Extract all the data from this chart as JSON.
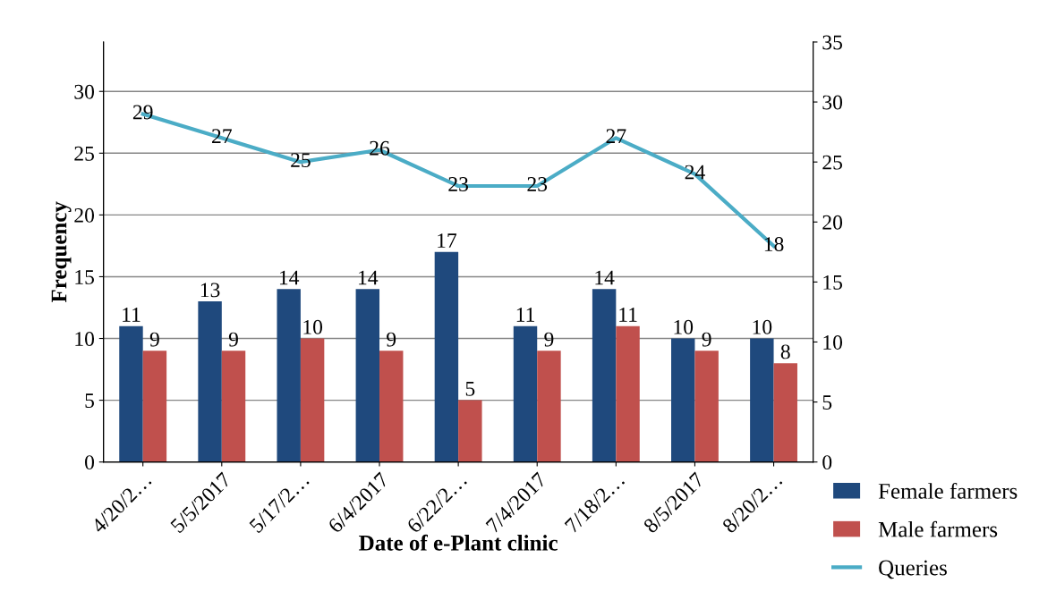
{
  "chart_data": {
    "type": "bar",
    "xlabel": "Date of e-Plant clinic",
    "ylabel": "Frequency",
    "categories": [
      "4/20/2…",
      "5/5/2017",
      "5/17/2…",
      "6/4/2017",
      "6/22/2…",
      "7/4/2017",
      "7/18/2…",
      "8/5/2017",
      "8/20/2…"
    ],
    "series": [
      {
        "name": "Female farmers",
        "color": "#1f497d",
        "values": [
          11,
          13,
          14,
          14,
          17,
          11,
          14,
          10,
          10
        ]
      },
      {
        "name": "Male farmers",
        "color": "#c0504d",
        "values": [
          9,
          9,
          10,
          9,
          5,
          9,
          11,
          9,
          8
        ]
      },
      {
        "name": "Queries",
        "type": "line",
        "axis": "y2",
        "color": "#4bacc6",
        "values": [
          29,
          27,
          25,
          26,
          23,
          23,
          27,
          24,
          18
        ]
      }
    ],
    "ylim": [
      0,
      34
    ],
    "yticks": [
      0,
      5,
      10,
      15,
      20,
      25,
      30
    ],
    "y2lim": [
      0,
      35
    ],
    "y2ticks": [
      0,
      5,
      10,
      15,
      20,
      25,
      30,
      35
    ],
    "grid": "y",
    "legend": "right",
    "data_labels": true,
    "marker": "none",
    "line_style": "solid"
  }
}
